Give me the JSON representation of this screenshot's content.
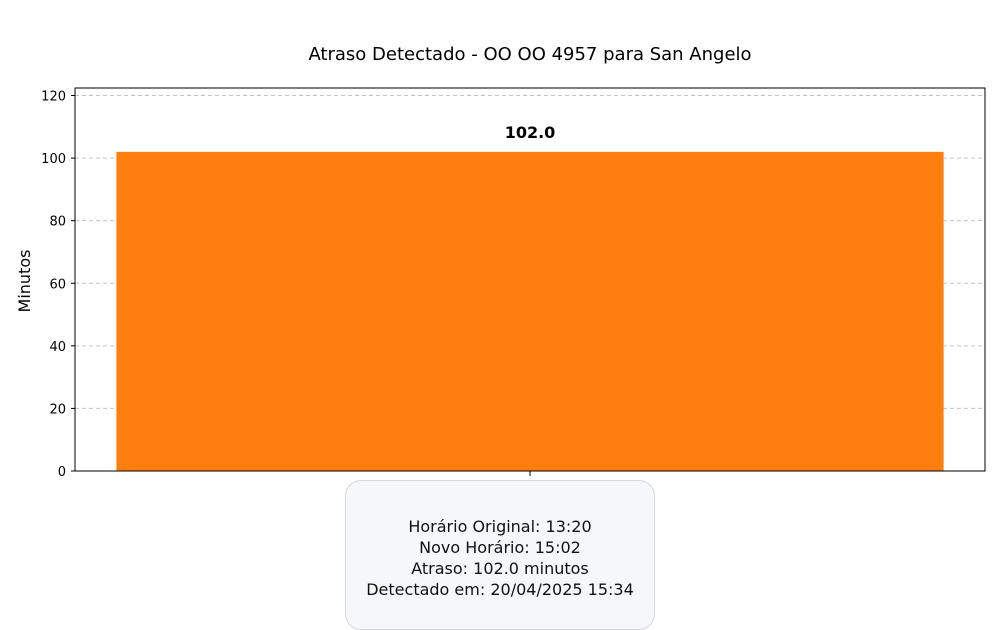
{
  "chart_data": {
    "type": "bar",
    "title": "Atraso Detectado - OO OO 4957 para San Angelo",
    "xlabel": "",
    "ylabel": "Minutos",
    "categories": [
      ""
    ],
    "values": [
      102.0
    ],
    "data_labels": [
      "102.0"
    ],
    "ylim": [
      0,
      122.4
    ],
    "yticks": [
      0,
      20,
      40,
      60,
      80,
      100,
      120
    ],
    "grid": "horizontal dashed",
    "bar_color": "#ff7f0e",
    "legend": "none"
  },
  "info": {
    "line1": "Horário Original: 13:20",
    "line2": "Novo Horário: 15:02",
    "line3": "Atraso: 102.0 minutos",
    "line4": "Detectado em: 20/04/2025 15:34"
  }
}
